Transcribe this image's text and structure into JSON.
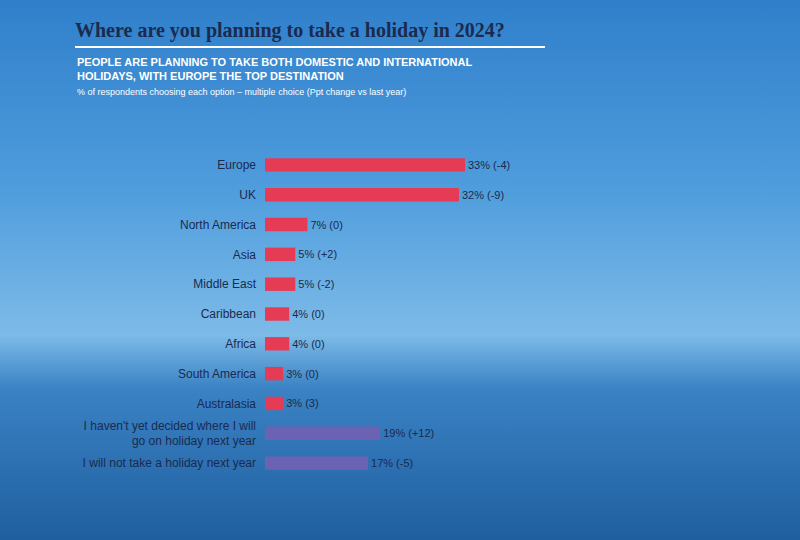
{
  "chart_data": {
    "type": "bar",
    "title": "Where are you planning to take a holiday in 2024?",
    "subtitle": "PEOPLE ARE PLANNING TO TAKE BOTH DOMESTIC AND INTERNATIONAL HOLIDAYS, WITH EUROPE THE TOP DESTINATION",
    "note": "% of respondents choosing each option – multiple choice (Ppt change vs last year)",
    "orientation": "horizontal",
    "categories": [
      "Europe",
      "UK",
      "North America",
      "Asia",
      "Middle East",
      "Caribbean",
      "Africa",
      "South America",
      "Australasia",
      "I haven't yet decided where I will go on holiday next year",
      "I will not take a holiday next year"
    ],
    "values": [
      33,
      32,
      7,
      5,
      5,
      4,
      4,
      3,
      3,
      19,
      17
    ],
    "value_labels": [
      "33% (-4)",
      "32% (-9)",
      "7% (0)",
      "5% (+2)",
      "5% (-2)",
      "4% (0)",
      "4% (0)",
      "3% (0)",
      "3% (3)",
      "19% (+12)",
      "17% (-5)"
    ],
    "colors": [
      "#e63b55",
      "#e63b55",
      "#e63b55",
      "#e63b55",
      "#e63b55",
      "#e63b55",
      "#e63b55",
      "#e63b55",
      "#e63b55",
      "#6c62b3",
      "#6c62b3"
    ],
    "data_labels": true,
    "tick_labels": "y",
    "grid": false
  }
}
